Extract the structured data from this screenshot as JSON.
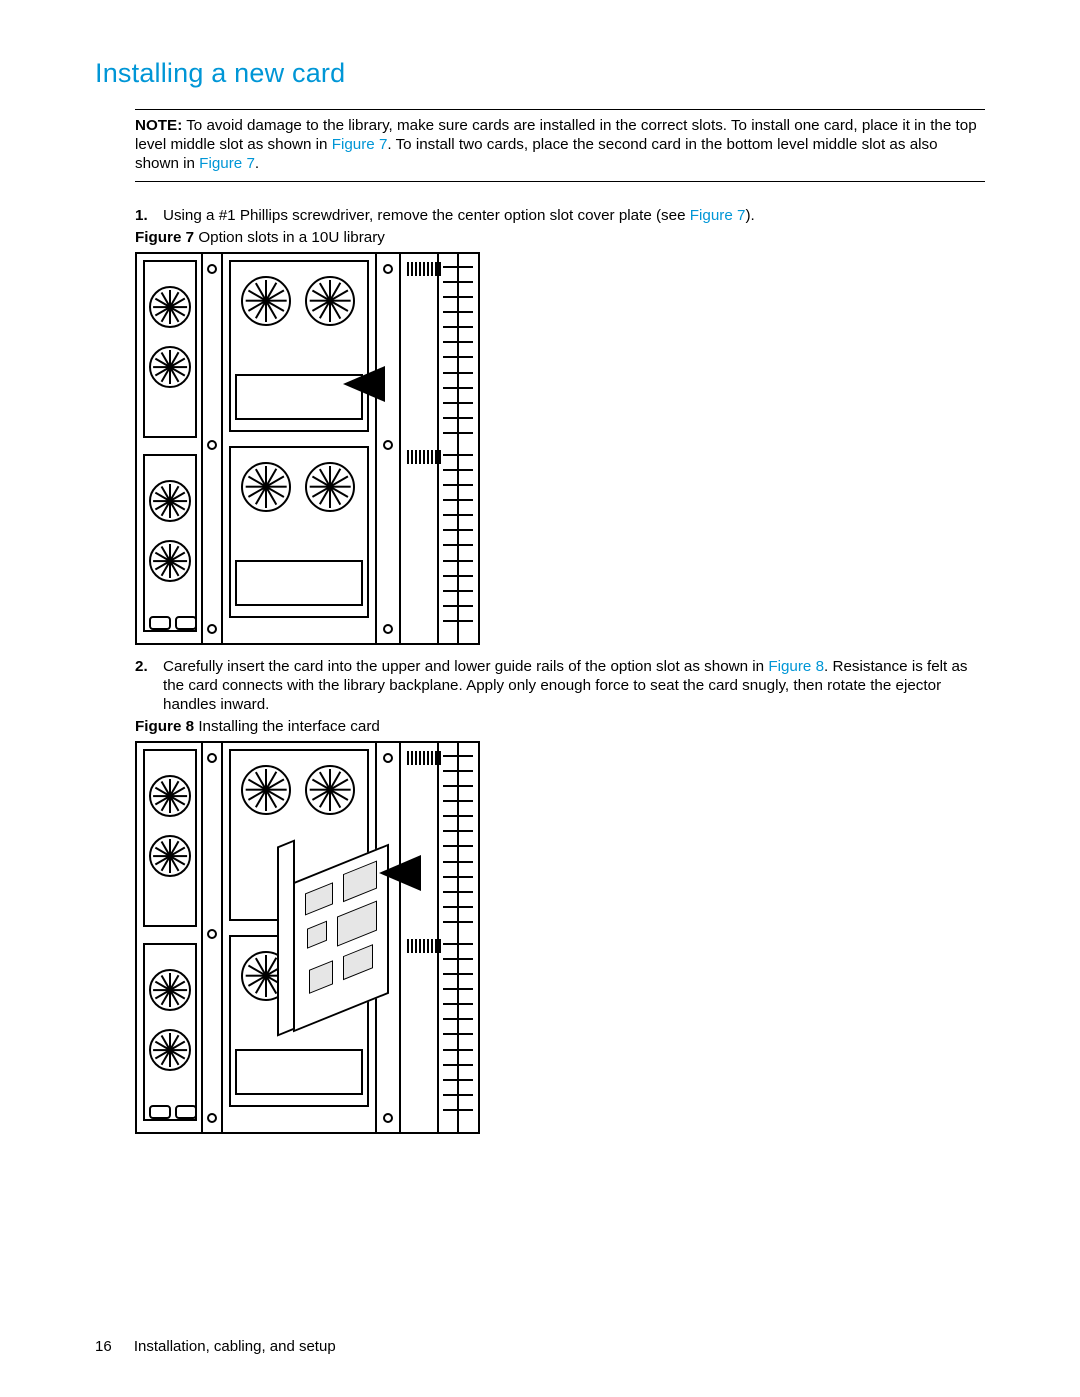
{
  "colors": {
    "accent": "#0096d6",
    "text": "#000000",
    "background": "#ffffff"
  },
  "typography": {
    "heading_fontsize_pt": 20,
    "body_fontsize_pt": 11.5,
    "font_family": "Futura / Arial-like sans-serif"
  },
  "heading": "Installing a new card",
  "note": {
    "label": "NOTE:",
    "text_before_link1": "To avoid damage to the library, make sure cards are installed in the correct slots. To install one card, place it in the top level middle slot as shown in ",
    "link1": "Figure 7",
    "text_between": ". To install two cards, place the second card in the bottom level middle slot as also shown in ",
    "link2": "Figure 7",
    "text_after": "."
  },
  "steps": [
    {
      "num": "1.",
      "text_before_link": "Using a #1 Phillips screwdriver, remove the center option slot cover plate (see ",
      "link": "Figure 7",
      "text_after_link": ")."
    },
    {
      "num": "2.",
      "text_before_link": "Carefully insert the card into the upper and lower guide rails of the option slot as shown in ",
      "link": "Figure 8",
      "text_after_link": ". Resistance is felt as the card connects with the library backplane. Apply only enough force to seat the card snugly, then rotate the ejector handles inward."
    }
  ],
  "figures": {
    "fig7": {
      "label": "Figure 7",
      "caption": "Option slots in a 10U library",
      "type": "line-art-diagram",
      "description": "Rear isometric line drawing of 10U tape library showing two stacked drive bays with cooling fans, option card slots in middle, black arrow pointing to upper option slot"
    },
    "fig8": {
      "label": "Figure 8",
      "caption": "Installing the interface card",
      "type": "line-art-diagram",
      "description": "Same 10U library rear view with an interface card being inserted at an angle into the option slot, black arrow indicating insertion direction"
    }
  },
  "footer": {
    "page_number": "16",
    "chapter": "Installation, cabling, and setup"
  }
}
